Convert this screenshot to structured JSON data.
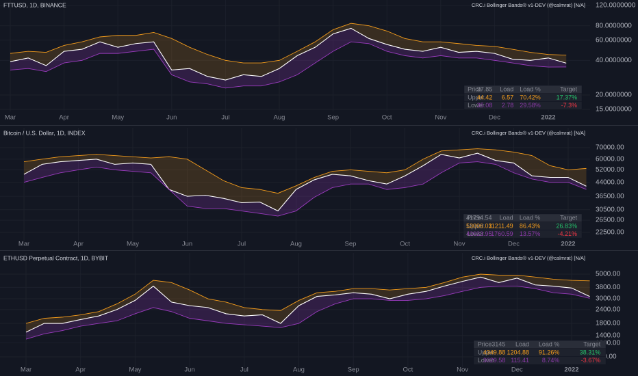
{
  "chart_data": [
    {
      "type": "line",
      "title": "FTTUSD, 1D, BINANCE",
      "indicator": "CRC.i Bollinger Bands® v1-DEV (@calmrat) [N/A]",
      "log": true,
      "categories": [
        "Mar",
        null,
        null,
        "Apr",
        null,
        null,
        "May",
        null,
        null,
        "Jun",
        null,
        null,
        "Jul",
        null,
        null,
        "Aug",
        null,
        null,
        "Sep",
        null,
        null,
        "Oct",
        null,
        null,
        "Nov",
        null,
        null,
        "Dec",
        null,
        null,
        "2022",
        null
      ],
      "series": [
        {
          "name": "Upper",
          "color": "#f59d1c",
          "values": [
            46,
            48,
            47,
            54,
            58,
            64,
            66,
            66,
            70,
            62,
            52,
            45,
            40,
            38,
            38,
            40,
            48,
            58,
            74,
            84,
            80,
            72,
            62,
            58,
            58,
            56,
            54,
            53,
            50,
            47,
            45,
            44.42
          ]
        },
        {
          "name": "Price",
          "color": "#ffffff",
          "values": [
            39,
            42,
            36,
            48,
            50,
            58,
            52,
            56,
            58,
            33,
            34,
            29,
            27,
            30,
            29,
            34,
            44,
            52,
            68,
            76,
            62,
            55,
            50,
            48,
            52,
            47,
            48,
            46,
            41,
            40,
            42,
            37.85
          ]
        },
        {
          "name": "Lower",
          "color": "#9c3cc0",
          "values": [
            33,
            34,
            32,
            38,
            40,
            46,
            46,
            48,
            50,
            30,
            26,
            25,
            23,
            24,
            24,
            26,
            30,
            38,
            48,
            58,
            56,
            48,
            44,
            42,
            44,
            42,
            42,
            40,
            38,
            36,
            35,
            35.08
          ]
        }
      ],
      "ylim": [
        14.4,
        134
      ],
      "yticks": [
        {
          "value": 120,
          "label": "120.0000000"
        },
        {
          "value": 80,
          "label": "80.0000000"
        },
        {
          "value": 60,
          "label": "60.0000000"
        },
        {
          "value": 40,
          "label": "40.0000000"
        },
        {
          "value": 20,
          "label": "20.0000000"
        },
        {
          "value": 15,
          "label": "15.0000000"
        }
      ],
      "table": [
        [
          "Price",
          "37.85",
          "Load",
          "Load %",
          "Target"
        ],
        [
          "Upper",
          "44.42",
          "6.57",
          "70.42%",
          "17.37%"
        ],
        [
          "Lower",
          "35.08",
          "2.78",
          "29.58%",
          "-7.3%"
        ]
      ]
    },
    {
      "type": "line",
      "title": "Bitcoin / U.S. Dollar, 1D, INDEX",
      "indicator": "CRC.i Bollinger Bands® v1-DEV (@calmrat) [N/A]",
      "log": true,
      "categories": [
        "Mar",
        null,
        null,
        "Apr",
        null,
        null,
        "May",
        null,
        null,
        "Jun",
        null,
        null,
        "Jul",
        null,
        null,
        "Aug",
        null,
        null,
        "Sep",
        null,
        null,
        "Oct",
        null,
        null,
        "Nov",
        null,
        null,
        "Dec",
        null,
        null,
        "2022",
        null
      ],
      "series": [
        {
          "name": "Upper",
          "color": "#f59d1c",
          "values": [
            58000,
            60000,
            62000,
            63000,
            64000,
            63000,
            62000,
            61000,
            62000,
            60000,
            52000,
            45000,
            41000,
            40000,
            38000,
            42000,
            47000,
            51000,
            52000,
            51000,
            50000,
            52000,
            60000,
            67000,
            68000,
            69000,
            68000,
            66000,
            63000,
            55000,
            52000,
            53006.03
          ]
        },
        {
          "name": "Price",
          "color": "#ffffff",
          "values": [
            49000,
            56000,
            58000,
            59000,
            60000,
            56000,
            57000,
            56000,
            40000,
            36500,
            37000,
            35500,
            33500,
            33800,
            30000,
            40000,
            45500,
            49000,
            48000,
            45000,
            43000,
            48000,
            55000,
            64000,
            61000,
            65000,
            59000,
            57000,
            48000,
            47000,
            47000,
            41794.54
          ]
        },
        {
          "name": "Lower",
          "color": "#9c3cc0",
          "values": [
            44000,
            47000,
            50000,
            52000,
            54000,
            52000,
            51000,
            50000,
            40000,
            32000,
            31000,
            31000,
            30000,
            29000,
            28000,
            30000,
            36000,
            41000,
            43000,
            43000,
            40000,
            41000,
            43000,
            50000,
            57000,
            58000,
            56000,
            50000,
            46000,
            44000,
            44000,
            40033.95
          ]
        }
      ],
      "ylim": [
        20150,
        91300
      ],
      "yticks": [
        {
          "value": 70000,
          "label": "70000.00"
        },
        {
          "value": 60000,
          "label": "60000.00"
        },
        {
          "value": 52000,
          "label": "52000.00"
        },
        {
          "value": 44000,
          "label": "44000.00"
        },
        {
          "value": 36500,
          "label": "36500.00"
        },
        {
          "value": 30500,
          "label": "30500.00"
        },
        {
          "value": 26500,
          "label": "26500.00"
        },
        {
          "value": 22500,
          "label": "22500.00"
        }
      ],
      "table": [
        [
          "Price",
          "41794.54",
          "Load",
          "Load %",
          "Target"
        ],
        [
          "Upper",
          "53006.03",
          "11211.49",
          "86.43%",
          "26.83%"
        ],
        [
          "Lower",
          "40033.95",
          "1760.59",
          "13.57%",
          "-4.21%"
        ]
      ]
    },
    {
      "type": "line",
      "title": "ETHUSD Perpetual Contract, 1D, BYBIT",
      "indicator": "CRC.i Bollinger Bands® v1-DEV (@calmrat) [N/A]",
      "log": true,
      "categories": [
        "Mar",
        null,
        null,
        "Apr",
        null,
        null,
        "May",
        null,
        null,
        "Jun",
        null,
        null,
        "Jul",
        null,
        null,
        "Aug",
        null,
        null,
        "Sep",
        null,
        null,
        "Oct",
        null,
        null,
        "Nov",
        null,
        null,
        "Dec",
        null,
        null,
        "2022",
        null
      ],
      "series": [
        {
          "name": "Upper",
          "color": "#f59d1c",
          "values": [
            1800,
            2000,
            2050,
            2150,
            2300,
            2700,
            3300,
            4400,
            4200,
            3600,
            3000,
            2800,
            2500,
            2400,
            2350,
            2900,
            3400,
            3500,
            3700,
            3700,
            3600,
            3700,
            3800,
            4200,
            4700,
            5000,
            4900,
            4900,
            4700,
            4500,
            4400,
            4349.88
          ]
        },
        {
          "name": "Price",
          "color": "#ffffff",
          "values": [
            1500,
            1800,
            1800,
            1950,
            2100,
            2400,
            2900,
            3900,
            2800,
            2600,
            2500,
            2200,
            2100,
            2150,
            1800,
            2600,
            3150,
            3250,
            3400,
            3300,
            3000,
            3300,
            3500,
            3900,
            4300,
            4700,
            4200,
            4600,
            4000,
            3900,
            3750,
            3145
          ]
        },
        {
          "name": "Lower",
          "color": "#9c3cc0",
          "values": [
            1300,
            1450,
            1550,
            1700,
            1800,
            1900,
            2200,
            2500,
            2300,
            2000,
            1900,
            1800,
            1750,
            1700,
            1650,
            1800,
            2300,
            2700,
            3000,
            3000,
            2900,
            2900,
            3000,
            3200,
            3500,
            3800,
            3900,
            3900,
            3700,
            3400,
            3300,
            3029.58
          ]
        }
      ],
      "ylim": [
        727,
        7760
      ],
      "yticks": [
        {
          "value": 5000,
          "label": "5000.00"
        },
        {
          "value": 3800,
          "label": "3800.00"
        },
        {
          "value": 3000,
          "label": "3000.00"
        },
        {
          "value": 2400,
          "label": "2400.00"
        },
        {
          "value": 1800,
          "label": "1800.00"
        },
        {
          "value": 1400,
          "label": "1400.00"
        },
        {
          "value": 1200,
          "label": "1200.00"
        },
        {
          "value": 900,
          "label": "900.00"
        }
      ],
      "table": [
        [
          "Price",
          "3145",
          "Load",
          "Load %",
          "Target"
        ],
        [
          "Upper",
          "4349.88",
          "1204.88",
          "91.26%",
          "38.31%"
        ],
        [
          "Lower",
          "3029.58",
          "115.41",
          "8.74%",
          "-3.67%"
        ]
      ]
    }
  ]
}
